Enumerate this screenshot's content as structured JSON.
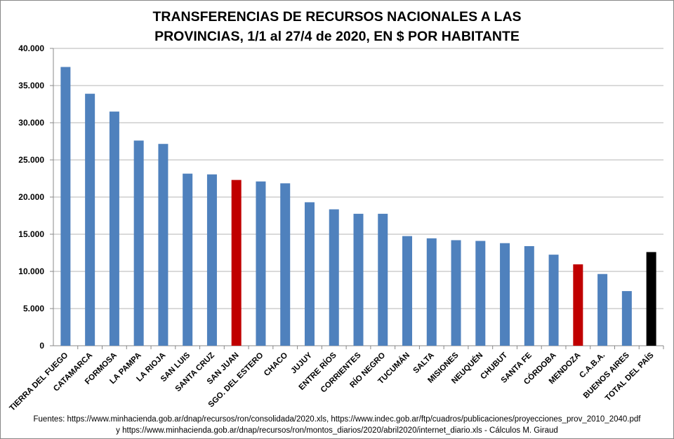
{
  "chart_data": {
    "type": "bar",
    "title_lines": [
      "TRANSFERENCIAS DE RECURSOS NACIONALES A LAS",
      "PROVINCIAS, 1/1 al 27/4 de 2020, EN $ POR HABITANTE"
    ],
    "xlabel": "",
    "ylabel": "",
    "ylim": [
      0,
      40000
    ],
    "yticks": [
      0,
      5000,
      10000,
      15000,
      20000,
      25000,
      30000,
      35000,
      40000
    ],
    "ytick_labels": [
      "0",
      "5.000",
      "10.000",
      "15.000",
      "20.000",
      "25.000",
      "30.000",
      "35.000",
      "40.000"
    ],
    "grid": true,
    "categories": [
      "TIERRA DEL FUEGO",
      "CATAMARCA",
      "FORMOSA",
      "LA PAMPA",
      "LA RIOJA",
      "SAN LUIS",
      "SANTA CRUZ",
      "SAN JUAN",
      "SGO. DEL ESTERO",
      "CHACO",
      "JUJUY",
      "ENTRE RÍOS",
      "CORRIENTES",
      "RÍO NEGRO",
      "TUCUMÁN",
      "SALTA",
      "MISIONES",
      "NEUQUÉN",
      "CHUBUT",
      "SANTA FE",
      "CÓRDOBA",
      "MENDOZA",
      "C.A.B.A.",
      "BUENOS AIRES",
      "TOTAL DEL PAÍS"
    ],
    "values": [
      37500,
      33900,
      31500,
      27600,
      27150,
      23150,
      23050,
      22300,
      22100,
      21850,
      19300,
      18350,
      17750,
      17750,
      14750,
      14450,
      14200,
      14100,
      13800,
      13400,
      12250,
      10950,
      9650,
      7350,
      12600
    ],
    "colors": [
      "#4f81bd",
      "#4f81bd",
      "#4f81bd",
      "#4f81bd",
      "#4f81bd",
      "#4f81bd",
      "#4f81bd",
      "#c00000",
      "#4f81bd",
      "#4f81bd",
      "#4f81bd",
      "#4f81bd",
      "#4f81bd",
      "#4f81bd",
      "#4f81bd",
      "#4f81bd",
      "#4f81bd",
      "#4f81bd",
      "#4f81bd",
      "#4f81bd",
      "#4f81bd",
      "#c00000",
      "#4f81bd",
      "#4f81bd",
      "#000000"
    ]
  },
  "footer": {
    "line1": "Fuentes:  https://www.minhacienda.gob.ar/dnap/recursos/ron/consolidada/2020.xls, https://www.indec.gob.ar/ftp/cuadros/publicaciones/proyecciones_prov_2010_2040.pdf",
    "line2": "y https://www.minhacienda.gob.ar/dnap/recursos/ron/montos_diarios/2020/abril2020/internet_diario.xls - Cálculos M. Giraud"
  }
}
